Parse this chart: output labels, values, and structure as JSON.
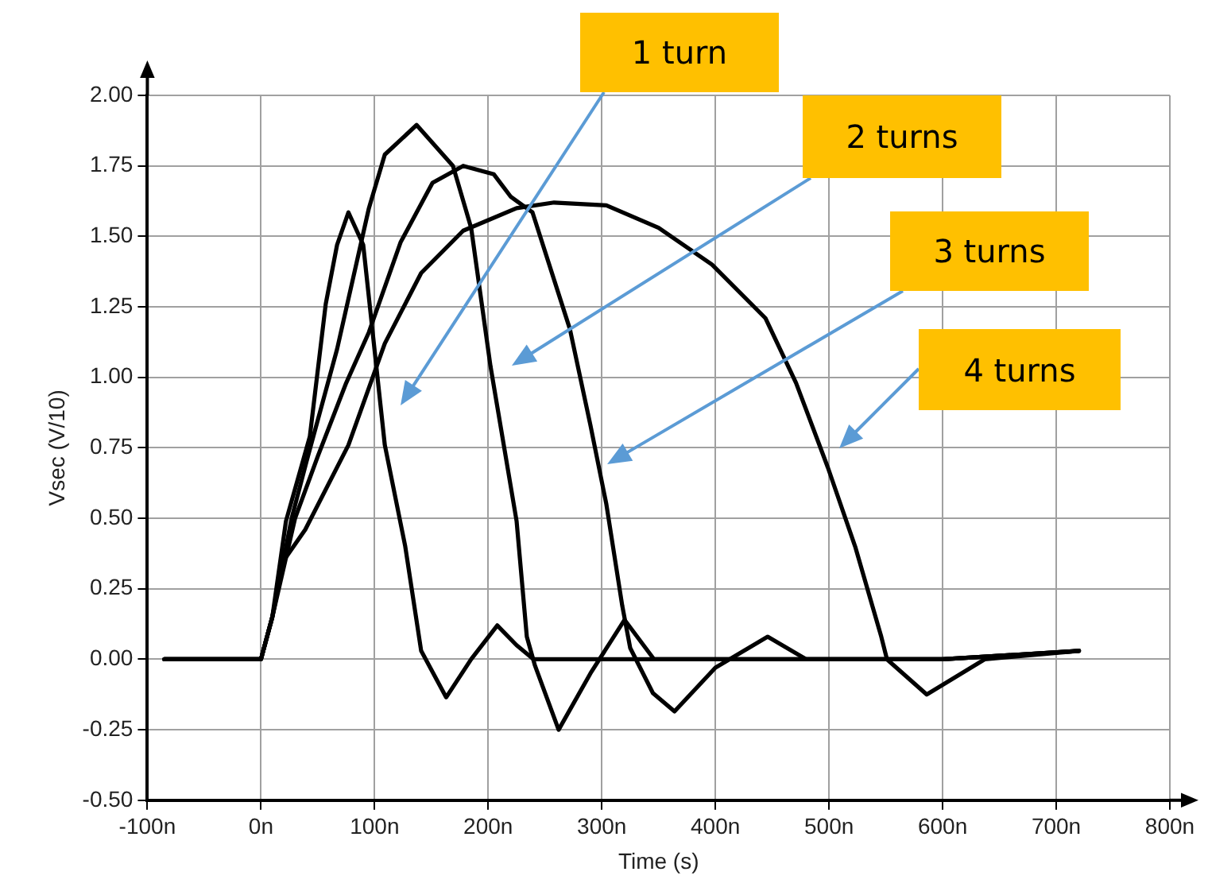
{
  "chart_data": {
    "type": "line",
    "xlabel": "Time (s)",
    "ylabel": "Vsec (V/10)",
    "xlim": [
      -100,
      800
    ],
    "xticks": [
      {
        "value": -100,
        "label": "-100n"
      },
      {
        "value": 0,
        "label": "0n"
      },
      {
        "value": 100,
        "label": "100n"
      },
      {
        "value": 200,
        "label": "200n"
      },
      {
        "value": 300,
        "label": "300n"
      },
      {
        "value": 400,
        "label": "400n"
      },
      {
        "value": 500,
        "label": "500n"
      },
      {
        "value": 600,
        "label": "600n"
      },
      {
        "value": 700,
        "label": "700n"
      },
      {
        "value": 800,
        "label": "800n"
      }
    ],
    "ylim": [
      -0.5,
      2
    ],
    "yticks": [
      {
        "value": -0.5,
        "label": "-0.50"
      },
      {
        "value": -0.25,
        "label": "-0.25"
      },
      {
        "value": 0,
        "label": "0.00"
      },
      {
        "value": 0.25,
        "label": "0.25"
      },
      {
        "value": 0.5,
        "label": "0.50"
      },
      {
        "value": 0.75,
        "label": "0.75"
      },
      {
        "value": 1,
        "label": "1.00"
      },
      {
        "value": 1.25,
        "label": "1.25"
      },
      {
        "value": 1.5,
        "label": "1.50"
      },
      {
        "value": 1.75,
        "label": "1.75"
      },
      {
        "value": 2,
        "label": "2.00"
      }
    ],
    "grid": true,
    "legend": false,
    "marker": "none",
    "line_style": "solid",
    "series": [
      {
        "color": "#000000",
        "x": [
          -85,
          0,
          10,
          22,
          43,
          57,
          67,
          77,
          90,
          109,
          127,
          141,
          163,
          185,
          208,
          225,
          240,
          300,
          400,
          500,
          600,
          720
        ],
        "values": [
          0,
          0,
          0.15,
          0.49,
          0.79,
          1.26,
          1.47,
          1.585,
          1.47,
          0.76,
          0.4,
          0.03,
          -0.135,
          0,
          0.12,
          0.05,
          0,
          0,
          0,
          0,
          0,
          0.03
        ]
      },
      {
        "color": "#000000",
        "x": [
          -85,
          0,
          10,
          27,
          40,
          67,
          95,
          109,
          137,
          169,
          185,
          202,
          225,
          234,
          241,
          262,
          290,
          320,
          346,
          400,
          500,
          600,
          720
        ],
        "values": [
          0,
          0,
          0.15,
          0.5,
          0.7,
          1.1,
          1.6,
          1.79,
          1.895,
          1.75,
          1.53,
          1.04,
          0.49,
          0.08,
          -0.02,
          -0.25,
          -0.05,
          0.14,
          0,
          0,
          0,
          0,
          0.03
        ]
      },
      {
        "color": "#000000",
        "x": [
          -85,
          0,
          10,
          30,
          50,
          75,
          95,
          123,
          151,
          178,
          205,
          220,
          239,
          272,
          290,
          304,
          318,
          325,
          345,
          364,
          400,
          446,
          480,
          600,
          720
        ],
        "values": [
          0,
          0,
          0.15,
          0.5,
          0.72,
          0.98,
          1.16,
          1.48,
          1.69,
          1.75,
          1.72,
          1.64,
          1.585,
          1.17,
          0.83,
          0.55,
          0.19,
          0.04,
          -0.12,
          -0.185,
          -0.03,
          0.08,
          0,
          0,
          0.03
        ]
      },
      {
        "color": "#000000",
        "x": [
          -85,
          0,
          10,
          20,
          39,
          77,
          109,
          141,
          178,
          225,
          258,
          304,
          350,
          397,
          444,
          471,
          499,
          523,
          546,
          551,
          586,
          637,
          720
        ],
        "values": [
          0,
          0,
          0.15,
          0.35,
          0.46,
          0.76,
          1.12,
          1.37,
          1.52,
          1.6,
          1.62,
          1.61,
          1.53,
          1.4,
          1.21,
          0.98,
          0.68,
          0.4,
          0.08,
          0,
          -0.125,
          0,
          0.03
        ]
      }
    ],
    "annotations": [
      "1 turn",
      "2 turns",
      "3 turns",
      "4 turns"
    ]
  }
}
